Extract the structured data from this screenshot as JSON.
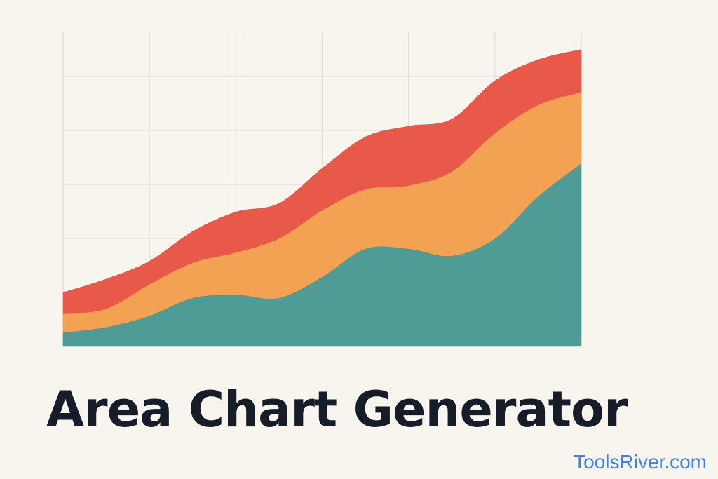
{
  "chart_data": {
    "type": "area",
    "stacked": true,
    "grid": true,
    "title": "Area Chart Generator",
    "brand": "ToolsRiver.com",
    "categories": [
      null,
      null,
      null,
      null,
      null,
      null,
      null,
      null,
      null,
      null,
      null,
      null,
      null
    ],
    "ylim": [
      0,
      6
    ],
    "yticks": [
      1,
      2,
      3,
      4,
      5
    ],
    "series": [
      {
        "color": "#4f9b95",
        "values": [
          0.26,
          0.36,
          0.57,
          0.9,
          0.96,
          0.9,
          1.29,
          1.81,
          1.81,
          1.68,
          2.0,
          2.78,
          3.39
        ]
      },
      {
        "color": "#f3a153",
        "values": [
          0.34,
          0.34,
          0.58,
          0.65,
          0.78,
          1.1,
          1.23,
          1.1,
          1.17,
          1.56,
          1.95,
          1.69,
          1.32
        ]
      },
      {
        "color": "#e8594a",
        "values": [
          0.4,
          0.55,
          0.43,
          0.58,
          0.75,
          0.65,
          0.78,
          0.97,
          1.1,
          0.97,
          0.97,
          0.84,
          0.79
        ]
      }
    ]
  }
}
